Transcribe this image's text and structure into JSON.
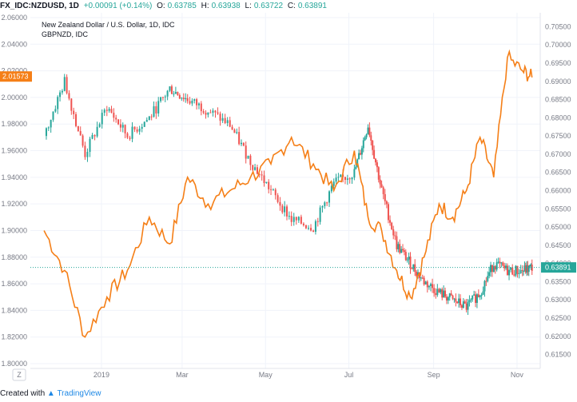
{
  "header": {
    "symbol": "FX_IDC:NZDUSD, 1D",
    "change": "+0.00091 (+0.14%)",
    "o_label": "O:",
    "o_value": "0.63785",
    "h_label": "H:",
    "h_value": "0.63938",
    "l_label": "L:",
    "l_value": "0.63722",
    "c_label": "C:",
    "c_value": "0.63891"
  },
  "legend": {
    "main": "New Zealand Dollar / U.S. Dollar, 1D, IDC",
    "compare": "GBPNZD, IDC"
  },
  "footer": {
    "created_with": "Created with",
    "brand": "TradingView"
  },
  "timezone_button": "Z",
  "colors": {
    "up": "#26a69a",
    "down": "#ef5350",
    "compare_line": "#f57f17",
    "price_line": "#26a69a",
    "compare_badge": "#f57f17"
  },
  "chart_data": [
    {
      "type": "line",
      "series": [
        {
          "name": "GBPNZD, IDC",
          "axis": "left"
        }
      ],
      "yaxis_left": {
        "ticks": [
          "2.06000",
          "2.04000",
          "2.02000",
          "2.00000",
          "1.98000",
          "1.96000",
          "1.94000",
          "1.92000",
          "1.90000",
          "1.88000",
          "1.86000",
          "1.84000",
          "1.82000",
          "1.80000"
        ],
        "range": [
          1.8,
          2.06
        ]
      },
      "xaxis": {
        "ticks": [
          "2019",
          "Mar",
          "May",
          "Jul",
          "Sep",
          "Nov"
        ]
      },
      "last_value_label": "2.01573",
      "x": [
        "2018-11-20",
        "2018-12-05",
        "2018-12-20",
        "2019-01-05",
        "2019-01-20",
        "2019-02-05",
        "2019-02-20",
        "2019-03-05",
        "2019-03-20",
        "2019-04-05",
        "2019-04-20",
        "2019-05-05",
        "2019-05-20",
        "2019-06-05",
        "2019-06-20",
        "2019-07-05",
        "2019-07-15",
        "2019-07-25",
        "2019-08-05",
        "2019-08-15",
        "2019-08-25",
        "2019-09-05",
        "2019-09-15",
        "2019-09-25",
        "2019-10-05",
        "2019-10-15",
        "2019-10-25",
        "2019-11-05",
        "2019-11-12"
      ],
      "values": [
        1.9,
        1.87,
        1.82,
        1.85,
        1.87,
        1.91,
        1.89,
        1.94,
        1.92,
        1.93,
        1.94,
        1.95,
        1.97,
        1.95,
        1.93,
        1.96,
        1.91,
        1.9,
        1.87,
        1.85,
        1.88,
        1.92,
        1.91,
        1.93,
        1.97,
        1.94,
        2.03,
        2.02,
        2.015
      ]
    },
    {
      "type": "candlestick",
      "series": [
        {
          "name": "New Zealand Dollar / U.S. Dollar, 1D, IDC",
          "axis": "right"
        }
      ],
      "yaxis_right": {
        "ticks": [
          "0.70500",
          "0.70000",
          "0.69500",
          "0.69000",
          "0.68500",
          "0.68000",
          "0.67500",
          "0.67000",
          "0.66500",
          "0.66000",
          "0.65500",
          "0.65000",
          "0.64500",
          "0.64000",
          "0.63500",
          "0.63000",
          "0.62500",
          "0.62000",
          "0.61500"
        ],
        "range": [
          0.6125,
          0.7075
        ]
      },
      "last_value_label": "0.63891",
      "x": [
        "2018-11-20",
        "2018-12-05",
        "2018-12-20",
        "2019-01-05",
        "2019-01-20",
        "2019-02-05",
        "2019-02-20",
        "2019-03-05",
        "2019-03-20",
        "2019-04-05",
        "2019-04-20",
        "2019-05-05",
        "2019-05-20",
        "2019-06-05",
        "2019-06-20",
        "2019-07-05",
        "2019-07-15",
        "2019-07-25",
        "2019-08-05",
        "2019-08-15",
        "2019-08-25",
        "2019-09-05",
        "2019-09-15",
        "2019-09-25",
        "2019-10-05",
        "2019-10-15",
        "2019-10-25",
        "2019-11-05",
        "2019-11-12"
      ],
      "close": [
        0.675,
        0.69,
        0.67,
        0.683,
        0.675,
        0.68,
        0.688,
        0.685,
        0.682,
        0.678,
        0.668,
        0.66,
        0.652,
        0.65,
        0.662,
        0.665,
        0.678,
        0.66,
        0.645,
        0.64,
        0.635,
        0.632,
        0.63,
        0.628,
        0.632,
        0.64,
        0.638,
        0.638,
        0.6389
      ]
    }
  ]
}
